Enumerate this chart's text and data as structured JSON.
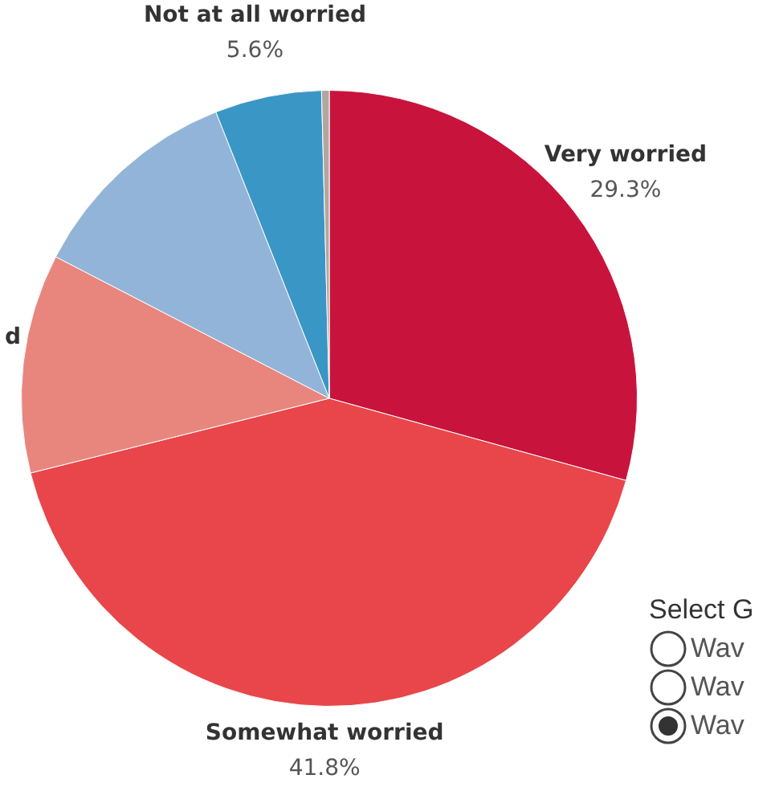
{
  "chart_data": {
    "type": "pie",
    "categories": [
      "Very worried",
      "Somewhat worried",
      "d",
      null,
      "Not at all worried",
      null
    ],
    "values": [
      29.3,
      41.8,
      11.5,
      11.4,
      5.6,
      0.4
    ],
    "value_labels": [
      "29.3%",
      "41.8%",
      null,
      null,
      "5.6%",
      null
    ],
    "colors": [
      "#c8143c",
      "#e8464a",
      "#e8867e",
      "#92b4d8",
      "#3a96c4",
      "#b0a8a0"
    ],
    "legend": false,
    "annotations": [
      "Select G",
      "Wav",
      "Wav",
      "Wav"
    ]
  }
}
